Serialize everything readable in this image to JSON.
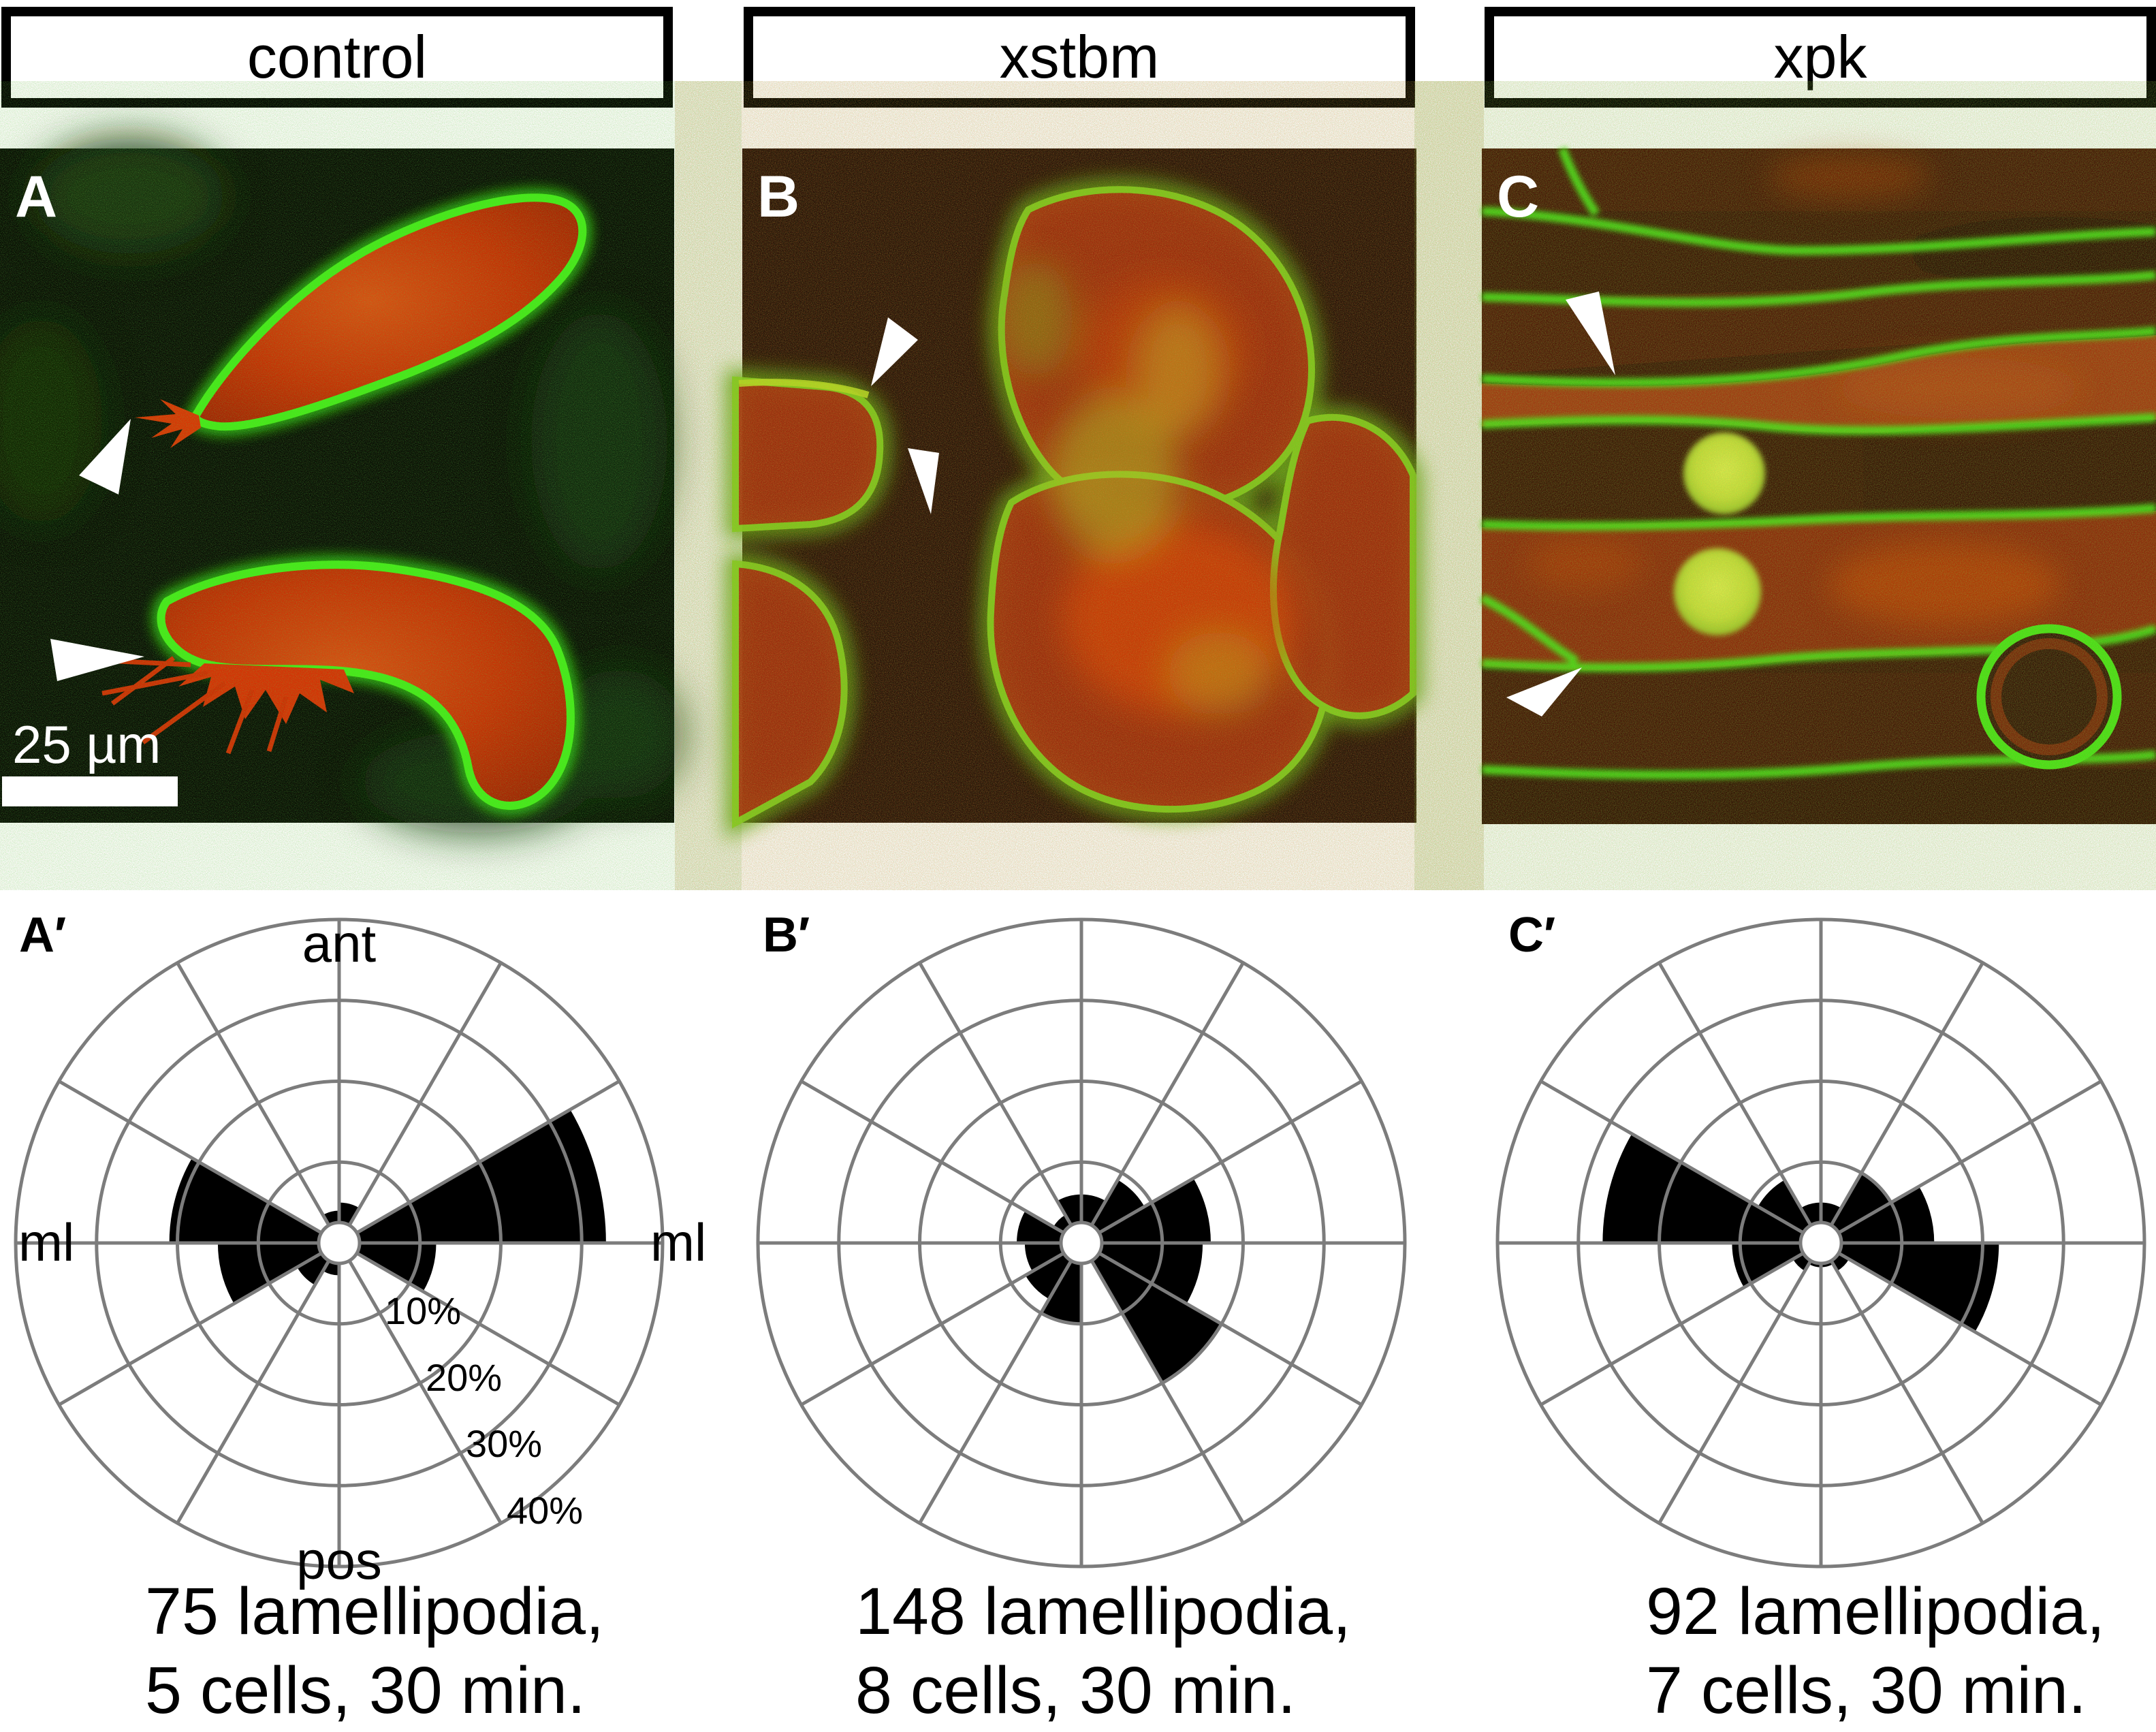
{
  "figure": {
    "columns": [
      {
        "title": "control",
        "image_label": "A",
        "scale_bar_label": "25 µm",
        "rose_label": "A′",
        "caption_line1": "75 lamellipodia,",
        "caption_line2": "5 cells, 30 min."
      },
      {
        "title": "xstbm",
        "image_label": "B",
        "rose_label": "B′",
        "caption_line1": "148 lamellipodia,",
        "caption_line2": "8 cells, 30 min."
      },
      {
        "title": "xpk",
        "image_label": "C",
        "rose_label": "C′",
        "caption_line1": "92 lamellipodia,",
        "caption_line2": "7 cells, 30 min."
      }
    ],
    "colors": {
      "membrane_green": "#3ee214",
      "cell_red": "#d42500",
      "grid_gray": "#7c7c7c",
      "arrowhead_white": "#ffffff",
      "wedge_black": "#000000"
    }
  },
  "chart_data": [
    {
      "type": "bar",
      "subtype": "rose-polar-histogram",
      "panel": "A′",
      "condition": "control",
      "categories_deg": [
        "0–30",
        "30–60",
        "60–90",
        "90–120",
        "120–150",
        "150–180",
        "180–210",
        "210–240",
        "240–270",
        "270–300",
        "300–330",
        "330–360"
      ],
      "values_percent": [
        33,
        0,
        5,
        4,
        0,
        21,
        15,
        6,
        4,
        0,
        0,
        12
      ],
      "rmax_percent": 40,
      "radial_ticks_percent": [
        10,
        20,
        30,
        40
      ],
      "ring_labels": [
        "10%",
        "20%",
        "30%",
        "40%"
      ],
      "axis_labels": {
        "top": "ant",
        "bottom": "pos",
        "left": "ml",
        "right": "ml"
      },
      "orientation": "0 deg = right (ml), counterclockwise, 90 deg = up (ant)",
      "grid": true,
      "sample": {
        "lamellipodia": 75,
        "cells": 5,
        "minutes": 30
      }
    },
    {
      "type": "bar",
      "subtype": "rose-polar-histogram",
      "panel": "B′",
      "condition": "xstbm",
      "categories_deg": [
        "0–30",
        "30–60",
        "60–90",
        "90–120",
        "120–150",
        "150–180",
        "180–210",
        "210–240",
        "240–270",
        "270–300",
        "300–330",
        "330–360"
      ],
      "values_percent": [
        16,
        9,
        6,
        6,
        4,
        8,
        7,
        8,
        10,
        0,
        20,
        15
      ],
      "rmax_percent": 40,
      "radial_ticks_percent": [
        10,
        20,
        30,
        40
      ],
      "orientation": "0 deg = right (ml), counterclockwise, 90 deg = up (ant)",
      "grid": true,
      "sample": {
        "lamellipodia": 148,
        "cells": 8,
        "minutes": 30
      }
    },
    {
      "type": "bar",
      "subtype": "rose-polar-histogram",
      "panel": "C′",
      "condition": "xpk",
      "categories_deg": [
        "0–30",
        "30–60",
        "60–90",
        "90–120",
        "120–150",
        "150–180",
        "180–210",
        "210–240",
        "240–270",
        "270–300",
        "300–330",
        "330–360"
      ],
      "values_percent": [
        14,
        10,
        5,
        5,
        9,
        27,
        11,
        4,
        3,
        3,
        4,
        22
      ],
      "rmax_percent": 40,
      "radial_ticks_percent": [
        10,
        20,
        30,
        40
      ],
      "orientation": "0 deg = right (ml), counterclockwise, 90 deg = up (ant)",
      "grid": true,
      "sample": {
        "lamellipodia": 92,
        "cells": 7,
        "minutes": 30
      }
    }
  ]
}
